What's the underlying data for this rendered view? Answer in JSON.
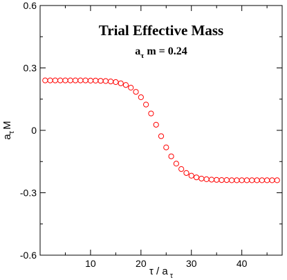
{
  "chart_data": {
    "type": "scatter",
    "title": "Trial Effective Mass",
    "subtitle": {
      "base": "a",
      "sub": "τ",
      "rest": " m = 0.24"
    },
    "xlabel": {
      "main": "τ / a",
      "sub": "τ"
    },
    "ylabel": {
      "main": "a",
      "sub": "τ",
      "rest": "M"
    },
    "xlim": [
      0,
      48
    ],
    "ylim": [
      -0.6,
      0.6
    ],
    "xticks": [
      10,
      20,
      30,
      40
    ],
    "yticks": [
      -0.6,
      -0.3,
      0,
      0.3,
      0.6
    ],
    "ytick_labels": [
      "-0.6",
      "-0.3",
      "0",
      "0.3",
      "0.6"
    ],
    "grid": false,
    "marker_color": "#ff0000",
    "series": [
      {
        "x": [
          1,
          2,
          3,
          4,
          5,
          6,
          7,
          8,
          9,
          10,
          11,
          12,
          13,
          14,
          15,
          16,
          17,
          18,
          19,
          20,
          21,
          22,
          23,
          24,
          25,
          26,
          27,
          28,
          29,
          30,
          31,
          32,
          33,
          34,
          35,
          36,
          37,
          38,
          39,
          40,
          41,
          42,
          43,
          44,
          45,
          46,
          47
        ],
        "y": [
          0.24,
          0.24,
          0.24,
          0.24,
          0.24,
          0.24,
          0.24,
          0.24,
          0.24,
          0.239,
          0.239,
          0.238,
          0.237,
          0.235,
          0.232,
          0.226,
          0.218,
          0.205,
          0.185,
          0.159,
          0.124,
          0.081,
          0.027,
          -0.028,
          -0.082,
          -0.125,
          -0.16,
          -0.186,
          -0.205,
          -0.218,
          -0.226,
          -0.232,
          -0.235,
          -0.237,
          -0.238,
          -0.239,
          -0.239,
          -0.24,
          -0.24,
          -0.24,
          -0.24,
          -0.24,
          -0.24,
          -0.24,
          -0.24,
          -0.24,
          -0.24
        ]
      }
    ]
  }
}
